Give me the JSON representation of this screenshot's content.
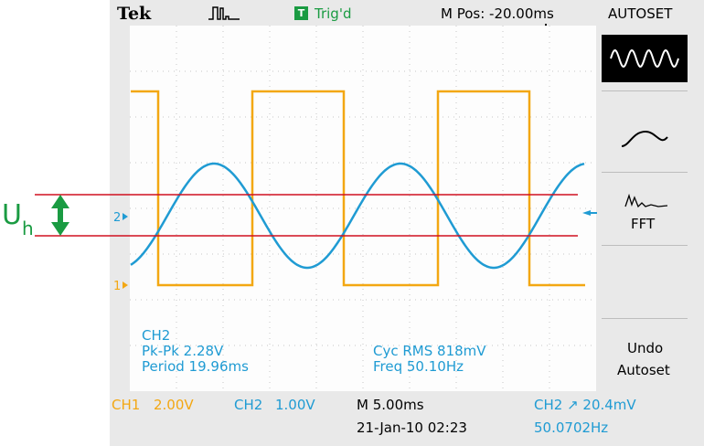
{
  "header": {
    "brand": "Tek",
    "trig_state": "Trig'd",
    "trig_badge": "T",
    "m_pos": "M Pos: -20.00ms",
    "autoset": "AUTOSET"
  },
  "side_menu": {
    "fft_label": "FFT",
    "undo_line1": "Undo",
    "undo_line2": "Autoset"
  },
  "markers": {
    "ch1": "1",
    "ch2": "2"
  },
  "measurements": {
    "source": "CH2",
    "pk_pk": "Pk-Pk 2.28V",
    "period": "Period 19.96ms",
    "cyc_rms": "Cyc RMS 818mV",
    "freq": "Freq 50.10Hz"
  },
  "status_bar": {
    "ch1": "CH1",
    "ch1_scale": "2.00V",
    "ch2": "CH2",
    "ch2_scale": "1.00V",
    "timebase": "M 5.00ms",
    "trigger": "CH2 ↗ 20.4mV",
    "date_time": "21-Jan-10 02:23",
    "trig_freq": "50.0702Hz"
  },
  "annotation": {
    "label_main": "U",
    "label_sub": "h"
  },
  "colors": {
    "ch1": "#f3a712",
    "ch2": "#1f9bd3",
    "threshold": "#d01020",
    "annotation": "#1a9b42"
  },
  "icons": [
    "pulse-icon",
    "trigger-arrow-icon",
    "sine-wave-icon",
    "fft-spectrum-icon",
    "double-arrow-icon"
  ]
}
